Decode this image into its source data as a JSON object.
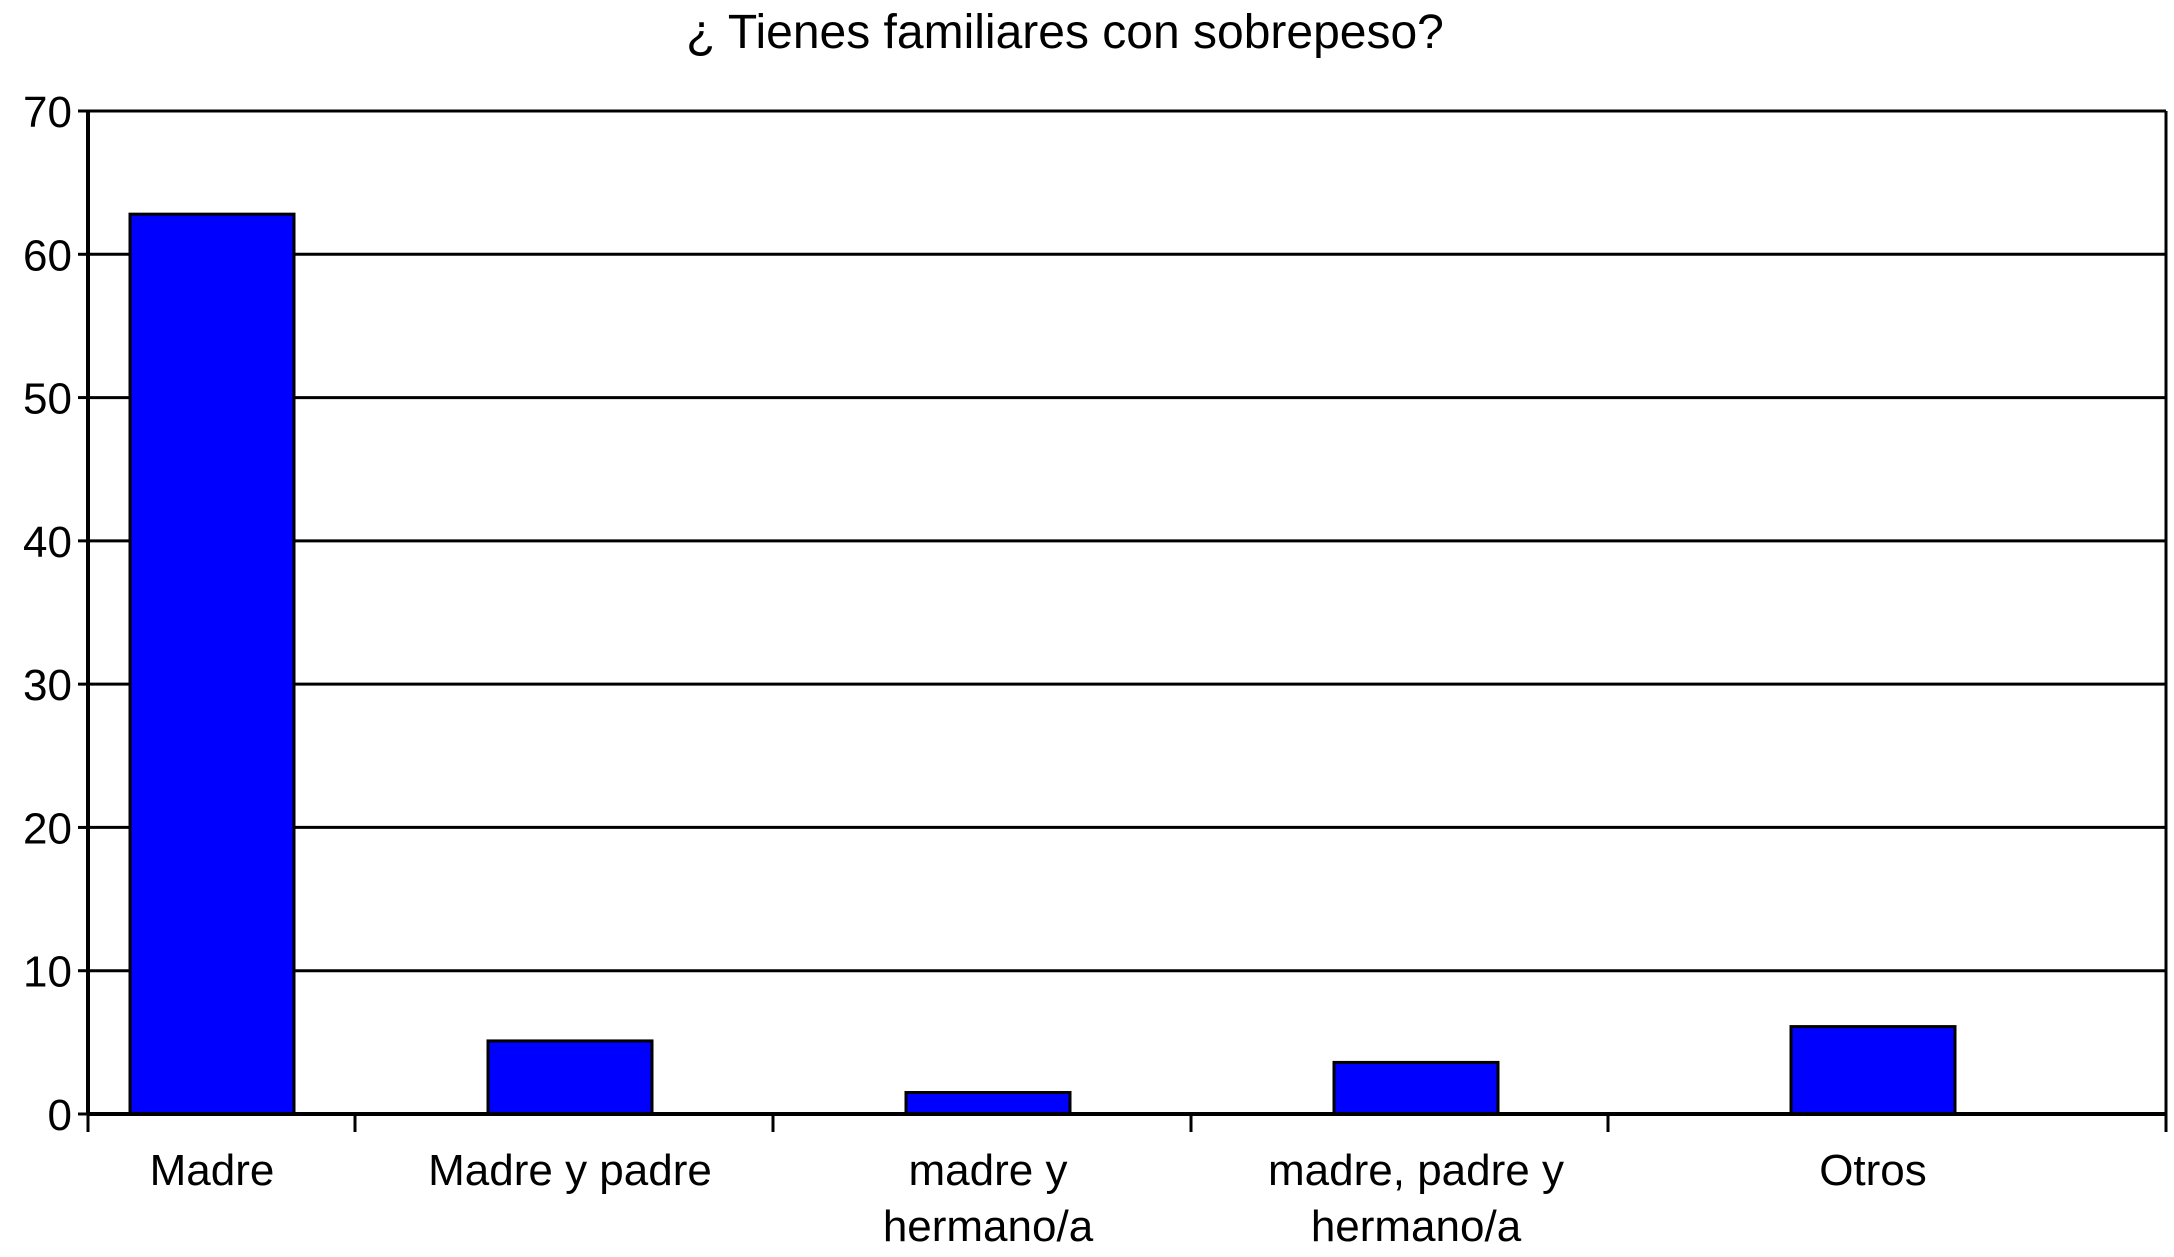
{
  "chart_data": {
    "type": "bar",
    "title": "¿ Tienes familiares con sobrepeso?",
    "xlabel": "",
    "ylabel": "",
    "categories": [
      "Madre",
      "Madre y padre",
      "madre y\nhermano/a",
      "madre, padre y\nhermano/a",
      "Otros"
    ],
    "values": [
      62.8,
      5.1,
      1.5,
      3.6,
      6.1
    ],
    "ylim": [
      0,
      70
    ],
    "yticks": [
      0,
      10,
      20,
      30,
      40,
      50,
      60,
      70
    ],
    "grid": true,
    "legend": "none",
    "bar_color": "#0000ff",
    "bar_edge_color": "#000000"
  }
}
